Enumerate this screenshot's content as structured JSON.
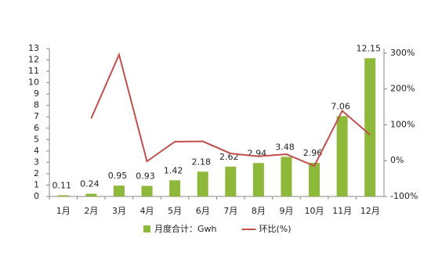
{
  "chart_data": {
    "type": "bar",
    "categories": [
      "1月",
      "2月",
      "3月",
      "4月",
      "5月",
      "6月",
      "7月",
      "8月",
      "9月",
      "10月",
      "11月",
      "12月"
    ],
    "series": [
      {
        "name": "月度合计：Gwh",
        "type": "bar",
        "color": "#8db83a",
        "values": [
          0.11,
          0.24,
          0.95,
          0.93,
          1.42,
          2.18,
          2.62,
          2.94,
          3.48,
          2.96,
          7.06,
          12.15
        ]
      },
      {
        "name": "环比(%)",
        "type": "line",
        "axis": "y2",
        "color": "#c0504d",
        "values": [
          null,
          118,
          296,
          -2,
          53,
          54,
          20,
          12,
          18,
          -15,
          139,
          72
        ]
      }
    ],
    "ylim": [
      0,
      13
    ],
    "yticks": [
      0,
      1,
      2,
      3,
      4,
      5,
      6,
      7,
      8,
      9,
      10,
      11,
      12,
      13
    ],
    "y2lim": [
      -100,
      313
    ],
    "y2ticks": [
      {
        "value": -100,
        "label": "-100%"
      },
      {
        "value": 0,
        "label": "0%"
      },
      {
        "value": 100,
        "label": "100%"
      },
      {
        "value": 200,
        "label": "200%"
      },
      {
        "value": 300,
        "label": "300%"
      }
    ],
    "grid": false
  }
}
